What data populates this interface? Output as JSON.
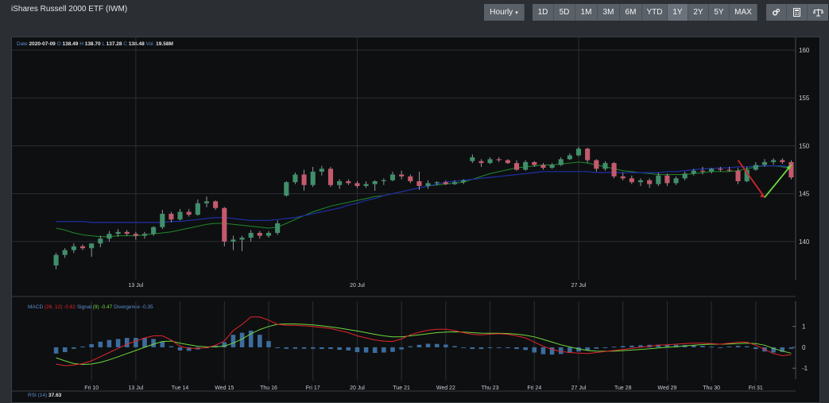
{
  "page": {
    "title": "iShares Russell 2000 ETF (IWM)"
  },
  "toolbar": {
    "interval_label": "Hourly",
    "ranges": [
      "1D",
      "5D",
      "1M",
      "3M",
      "6M",
      "YTD",
      "1Y",
      "2Y",
      "5Y",
      "MAX"
    ],
    "selected_range": "1Y",
    "tool_icons": [
      "settings-icon",
      "calculator-icon",
      "balance-scale-icon"
    ]
  },
  "price_header": {
    "date_label": "Date",
    "date": "2020-07-09",
    "open_label": "O",
    "open": "138.49",
    "high_label": "H",
    "high": "138.70",
    "low_label": "L",
    "low": "137.28",
    "close_label": "C",
    "close": "138.48",
    "vol_label": "Vol.",
    "vol": "19.58M"
  },
  "macd_header": {
    "name": "MACD",
    "params": "(26, 12)",
    "macd_value": "-0.82",
    "signal_label": "Signal",
    "signal_params": "(9)",
    "signal_value": "-0.47",
    "divergence_label": "Divergence",
    "divergence_value": "-0.35"
  },
  "rsi_header": {
    "name": "RSI",
    "params": "(14)",
    "value": "37.63"
  },
  "colors": {
    "up": "#3f8f6b",
    "down": "#c45a6c",
    "ma_fast": "#1f8a2b",
    "ma_slow": "#1e2d9b",
    "macd": "#e0262b",
    "signal": "#6fd83b",
    "histogram": "#3c6d9e",
    "arrow_down": "#d0262b",
    "arrow_up": "#6cd93e"
  },
  "chart_data": [
    {
      "type": "candlestick",
      "y_ticks": [
        140,
        145,
        150,
        155,
        160
      ],
      "ylim": [
        136,
        161
      ],
      "x_tick_labels": [
        "13 Jul",
        "20 Jul",
        "27 Jul"
      ],
      "x_tick_index": [
        9,
        34,
        59
      ],
      "bar_count": 84,
      "candles": [
        [
          137.5,
          138.8,
          137.1,
          138.6
        ],
        [
          138.6,
          139.3,
          138.3,
          139.1
        ],
        [
          139.1,
          139.8,
          138.8,
          139.5
        ],
        [
          139.5,
          139.7,
          139.1,
          139.3
        ],
        [
          139.3,
          139.8,
          138.4,
          139.8
        ],
        [
          139.8,
          140.6,
          139.4,
          140.3
        ],
        [
          140.3,
          141.1,
          140.0,
          140.8
        ],
        [
          140.8,
          141.3,
          140.5,
          141.0
        ],
        [
          141.0,
          141.2,
          140.6,
          140.8
        ],
        [
          140.8,
          141.0,
          140.2,
          140.6
        ],
        [
          140.6,
          141.0,
          140.3,
          140.8
        ],
        [
          140.8,
          141.6,
          140.6,
          141.5
        ],
        [
          141.5,
          143.3,
          141.3,
          142.9
        ],
        [
          142.9,
          143.1,
          142.0,
          142.3
        ],
        [
          142.3,
          143.4,
          142.2,
          143.1
        ],
        [
          143.1,
          143.4,
          142.6,
          142.8
        ],
        [
          142.8,
          144.4,
          142.7,
          144.0
        ],
        [
          144.0,
          144.7,
          143.6,
          144.2
        ],
        [
          144.2,
          144.3,
          143.3,
          143.5
        ],
        [
          143.5,
          143.6,
          139.5,
          140.0
        ],
        [
          140.0,
          140.6,
          139.1,
          140.2
        ],
        [
          140.2,
          140.6,
          139.0,
          140.4
        ],
        [
          140.4,
          141.2,
          140.0,
          140.9
        ],
        [
          140.9,
          141.1,
          140.3,
          140.6
        ],
        [
          140.6,
          141.1,
          140.4,
          140.9
        ],
        [
          140.9,
          142.2,
          140.7,
          141.9
        ],
        [
          144.8,
          146.3,
          144.7,
          146.2
        ],
        [
          146.2,
          147.2,
          146.0,
          147.0
        ],
        [
          147.0,
          147.5,
          145.3,
          145.9
        ],
        [
          145.9,
          147.8,
          145.7,
          147.3
        ],
        [
          147.3,
          147.9,
          146.9,
          147.6
        ],
        [
          147.6,
          147.8,
          145.7,
          145.9
        ],
        [
          145.9,
          146.5,
          145.5,
          146.3
        ],
        [
          146.3,
          146.5,
          145.9,
          146.1
        ],
        [
          146.1,
          146.3,
          145.6,
          145.8
        ],
        [
          145.8,
          146.3,
          145.6,
          146.0
        ],
        [
          146.0,
          146.4,
          145.3,
          146.3
        ],
        [
          146.3,
          146.6,
          145.9,
          146.4
        ],
        [
          146.4,
          147.3,
          146.3,
          147.0
        ],
        [
          147.0,
          147.4,
          146.5,
          146.8
        ],
        [
          146.8,
          147.0,
          146.1,
          146.3
        ],
        [
          146.3,
          147.3,
          145.4,
          145.8
        ],
        [
          145.8,
          146.4,
          145.5,
          146.1
        ],
        [
          146.1,
          146.3,
          145.9,
          146.2
        ],
        [
          146.2,
          146.4,
          145.9,
          146.0
        ],
        [
          146.0,
          146.4,
          145.9,
          146.2
        ],
        [
          146.2,
          146.5,
          146.0,
          146.4
        ],
        [
          148.4,
          149.1,
          148.2,
          148.8
        ],
        [
          148.4,
          148.6,
          147.8,
          148.2
        ],
        [
          148.2,
          148.8,
          148.1,
          148.6
        ],
        [
          148.6,
          148.8,
          148.3,
          148.5
        ],
        [
          148.5,
          148.6,
          148.1,
          148.2
        ],
        [
          148.2,
          148.5,
          147.4,
          147.5
        ],
        [
          147.5,
          148.5,
          147.4,
          148.3
        ],
        [
          148.3,
          148.4,
          147.8,
          148.0
        ],
        [
          148.0,
          148.2,
          147.5,
          147.7
        ],
        [
          147.7,
          148.2,
          147.6,
          148.0
        ],
        [
          148.0,
          148.8,
          147.9,
          148.6
        ],
        [
          148.6,
          149.2,
          148.5,
          149.0
        ],
        [
          149.0,
          149.9,
          148.9,
          149.7
        ],
        [
          149.7,
          149.8,
          148.2,
          148.5
        ],
        [
          148.5,
          148.6,
          147.3,
          147.6
        ],
        [
          147.6,
          148.4,
          147.4,
          148.2
        ],
        [
          148.2,
          148.3,
          146.6,
          146.8
        ],
        [
          146.8,
          147.2,
          146.4,
          146.6
        ],
        [
          146.6,
          146.9,
          146.0,
          146.2
        ],
        [
          146.2,
          146.6,
          145.8,
          146.4
        ],
        [
          146.4,
          146.6,
          145.6,
          146.0
        ],
        [
          146.0,
          147.2,
          145.8,
          146.9
        ],
        [
          146.9,
          147.1,
          145.8,
          146.1
        ],
        [
          146.1,
          146.8,
          145.9,
          146.6
        ],
        [
          146.6,
          147.3,
          146.4,
          147.1
        ],
        [
          147.1,
          147.6,
          146.9,
          147.4
        ],
        [
          147.4,
          147.8,
          147.0,
          147.3
        ],
        [
          147.3,
          147.7,
          147.1,
          147.6
        ],
        [
          147.6,
          147.8,
          147.3,
          147.5
        ],
        [
          147.5,
          147.8,
          147.3,
          147.4
        ],
        [
          147.4,
          147.7,
          146.0,
          146.3
        ],
        [
          146.3,
          147.8,
          146.2,
          147.5
        ],
        [
          147.5,
          148.3,
          147.4,
          148.0
        ],
        [
          148.0,
          148.6,
          147.8,
          148.3
        ],
        [
          148.3,
          148.7,
          148.0,
          148.5
        ],
        [
          148.5,
          148.7,
          148.1,
          148.3
        ],
        [
          148.3,
          148.5,
          146.5,
          146.7
        ]
      ],
      "ma_fast": [
        141.4,
        141.2,
        140.9,
        140.7,
        140.6,
        140.5,
        140.5,
        140.6,
        140.6,
        140.6,
        140.7,
        140.8,
        140.9,
        141.0,
        141.2,
        141.4,
        141.6,
        141.8,
        141.9,
        141.9,
        141.8,
        141.7,
        141.6,
        141.5,
        141.4,
        141.5,
        141.9,
        142.3,
        142.7,
        143.1,
        143.4,
        143.7,
        143.9,
        144.1,
        144.3,
        144.5,
        144.7,
        144.8,
        145.0,
        145.2,
        145.4,
        145.6,
        145.8,
        145.9,
        146.0,
        146.1,
        146.2,
        146.5,
        146.8,
        147.1,
        147.3,
        147.5,
        147.7,
        147.8,
        147.9,
        148.0,
        148.0,
        148.1,
        148.2,
        148.3,
        148.2,
        148.0,
        147.8,
        147.6,
        147.4,
        147.3,
        147.2,
        147.1,
        147.0,
        147.0,
        147.0,
        147.0,
        147.1,
        147.2,
        147.3,
        147.3,
        147.3,
        147.4,
        147.6,
        147.8,
        147.9,
        147.9,
        147.8,
        147.6
      ],
      "ma_slow": [
        142.1,
        142.1,
        142.1,
        142.1,
        142.0,
        142.0,
        142.0,
        142.0,
        142.0,
        142.0,
        142.0,
        142.0,
        142.0,
        142.1,
        142.1,
        142.2,
        142.3,
        142.4,
        142.5,
        142.5,
        142.4,
        142.3,
        142.2,
        142.2,
        142.2,
        142.3,
        142.4,
        142.5,
        142.7,
        142.9,
        143.1,
        143.3,
        143.5,
        143.8,
        144.0,
        144.3,
        144.5,
        144.8,
        145.0,
        145.2,
        145.4,
        145.6,
        145.8,
        146.0,
        146.2,
        146.3,
        146.4,
        146.5,
        146.6,
        146.7,
        146.8,
        146.9,
        147.0,
        147.1,
        147.2,
        147.3,
        147.3,
        147.3,
        147.3,
        147.3,
        147.3,
        147.2,
        147.2,
        147.2,
        147.2,
        147.2,
        147.2,
        147.2,
        147.2,
        147.3,
        147.3,
        147.4,
        147.5,
        147.6,
        147.6,
        147.7,
        147.7,
        147.8,
        147.8,
        147.9,
        147.9,
        147.9,
        147.9,
        147.8
      ]
    },
    {
      "type": "line",
      "title": "MACD",
      "y_ticks": [
        -1,
        0,
        1
      ],
      "ylim": [
        -1.6,
        1.9
      ],
      "x_tick_labels": [
        "Fri 10",
        "13 Jul",
        "Tue 14",
        "Wed 15",
        "Thu 16",
        "Fri 17",
        "20 Jul",
        "Tue 21",
        "Wed 22",
        "Thu 23",
        "Fri 24",
        "27 Jul",
        "Tue 28",
        "Wed 29",
        "Thu 30",
        "Fri 31"
      ],
      "x_tick_index": [
        4,
        9,
        14,
        19,
        24,
        29,
        34,
        39,
        44,
        49,
        54,
        59,
        64,
        69,
        74,
        79
      ],
      "series": [
        {
          "key": "macd",
          "values": [
            -0.8,
            -0.88,
            -0.85,
            -0.78,
            -0.65,
            -0.45,
            -0.25,
            -0.05,
            0.15,
            0.3,
            0.45,
            0.55,
            0.55,
            0.35,
            0.05,
            -0.05,
            -0.05,
            -0.02,
            0.1,
            0.3,
            0.8,
            1.1,
            1.45,
            1.45,
            1.3,
            1.1,
            1.05,
            1.05,
            1.03,
            1.0,
            0.95,
            0.9,
            0.8,
            0.7,
            0.55,
            0.45,
            0.35,
            0.3,
            0.28,
            0.4,
            0.6,
            0.72,
            0.82,
            0.86,
            0.86,
            0.8,
            0.7,
            0.62,
            0.6,
            0.63,
            0.65,
            0.62,
            0.55,
            0.45,
            0.25,
            0.05,
            -0.1,
            -0.2,
            -0.25,
            -0.28,
            -0.3,
            -0.25,
            -0.2,
            -0.15,
            -0.1,
            -0.05,
            0.0,
            0.05,
            0.1,
            0.12,
            0.15,
            0.18,
            0.2,
            0.2,
            0.18,
            0.15,
            0.2,
            0.25,
            0.25,
            0.1,
            -0.1,
            -0.3,
            -0.4,
            -0.35
          ]
        },
        {
          "key": "signal",
          "values": [
            -0.5,
            -0.65,
            -0.78,
            -0.82,
            -0.8,
            -0.72,
            -0.6,
            -0.45,
            -0.3,
            -0.15,
            0.0,
            0.15,
            0.28,
            0.3,
            0.2,
            0.12,
            0.05,
            0.02,
            0.02,
            0.06,
            0.2,
            0.4,
            0.65,
            0.85,
            1.0,
            1.1,
            1.12,
            1.12,
            1.1,
            1.07,
            1.03,
            0.98,
            0.92,
            0.85,
            0.78,
            0.7,
            0.62,
            0.55,
            0.5,
            0.5,
            0.55,
            0.6,
            0.65,
            0.7,
            0.73,
            0.74,
            0.73,
            0.7,
            0.68,
            0.67,
            0.67,
            0.66,
            0.63,
            0.58,
            0.5,
            0.38,
            0.25,
            0.12,
            0.02,
            -0.08,
            -0.15,
            -0.18,
            -0.19,
            -0.18,
            -0.16,
            -0.13,
            -0.1,
            -0.07,
            -0.03,
            0.0,
            0.03,
            0.07,
            0.1,
            0.13,
            0.15,
            0.15,
            0.16,
            0.18,
            0.2,
            0.18,
            0.1,
            -0.05,
            -0.18,
            -0.28
          ]
        },
        {
          "key": "divergence",
          "values": [
            -0.3,
            -0.23,
            -0.07,
            0.04,
            0.15,
            0.27,
            0.35,
            0.4,
            0.45,
            0.45,
            0.45,
            0.4,
            0.27,
            0.05,
            -0.15,
            -0.17,
            -0.1,
            -0.04,
            0.08,
            0.24,
            0.6,
            0.7,
            0.8,
            0.6,
            0.3,
            0.0,
            -0.07,
            -0.07,
            -0.07,
            -0.07,
            -0.08,
            -0.08,
            -0.12,
            -0.15,
            -0.23,
            -0.25,
            -0.27,
            -0.25,
            -0.22,
            -0.1,
            0.05,
            0.12,
            0.17,
            0.16,
            0.13,
            0.06,
            -0.03,
            -0.08,
            -0.08,
            -0.04,
            -0.02,
            -0.04,
            -0.08,
            -0.13,
            -0.25,
            -0.33,
            -0.35,
            -0.32,
            -0.27,
            -0.2,
            -0.15,
            -0.07,
            -0.01,
            0.03,
            0.06,
            0.08,
            0.1,
            0.12,
            0.13,
            0.12,
            0.12,
            0.11,
            0.1,
            0.07,
            0.03,
            0.0,
            0.04,
            0.07,
            0.05,
            -0.08,
            -0.2,
            -0.25,
            -0.22,
            -0.07
          ]
        }
      ]
    }
  ]
}
